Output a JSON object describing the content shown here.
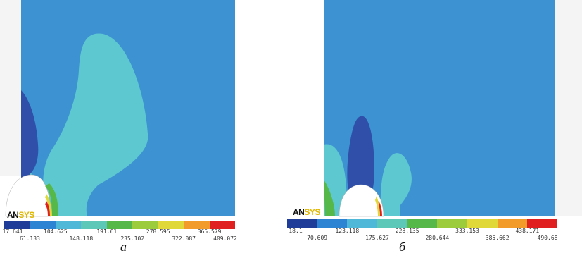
{
  "panels": [
    {
      "caption": "а",
      "logo": {
        "part1": "AN",
        "part2": "SYS"
      },
      "legend": {
        "colors": [
          "#1f3c98",
          "#2c84d2",
          "#4fb8d8",
          "#5ec8b8",
          "#56b848",
          "#9ccc3c",
          "#e0d838",
          "#f29a2a",
          "#e02020"
        ],
        "ticks_top": [
          "17.641",
          "104.625",
          "191.61",
          "278.595",
          "365.579"
        ],
        "ticks_bottom": [
          "61.133",
          "148.118",
          "235.102",
          "322.087",
          "409.072"
        ]
      }
    },
    {
      "caption": "б",
      "logo": {
        "part1": "AN",
        "part2": "SYS"
      },
      "legend": {
        "colors": [
          "#1f3c98",
          "#2c84d2",
          "#4fb8d8",
          "#5ec8b8",
          "#56b848",
          "#9ccc3c",
          "#e0d838",
          "#f29a2a",
          "#e02020"
        ],
        "ticks_top": [
          "18.1",
          "123.118",
          "228.135",
          "333.153",
          "438.171"
        ],
        "ticks_bottom": [
          "70.609",
          "175.627",
          "280.644",
          "385.662",
          "490.68"
        ]
      }
    }
  ]
}
